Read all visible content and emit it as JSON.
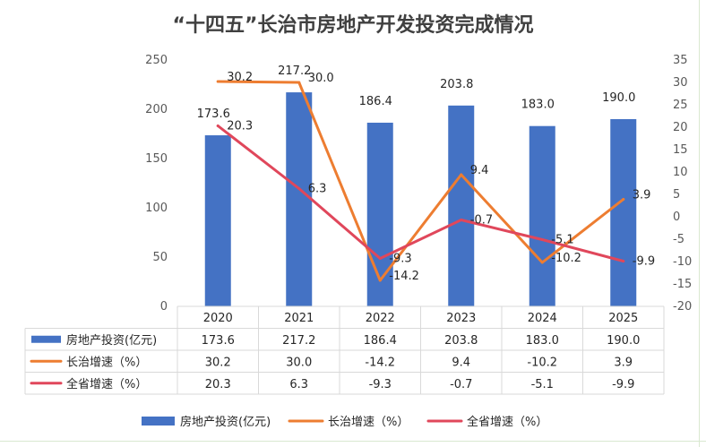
{
  "chart_data": {
    "type": "bar",
    "title": "“十四五”长治市房地产开发投资完成情况",
    "categories": [
      "2020",
      "2021",
      "2022",
      "2023",
      "2024",
      "2025"
    ],
    "series": [
      {
        "name": "房地产投资(亿元)",
        "kind": "bar",
        "axis": "left",
        "color": "#4472C4",
        "values": [
          173.6,
          217.2,
          186.4,
          203.8,
          183.0,
          190.0
        ],
        "labels": [
          "173.6",
          "217.2",
          "186.4",
          "203.8",
          "183.0",
          "190.0"
        ]
      },
      {
        "name": "长治增速（%）",
        "kind": "line",
        "axis": "right",
        "color": "#ED7D31",
        "values": [
          30.2,
          30.0,
          -14.2,
          9.4,
          -10.2,
          3.9
        ],
        "labels": [
          "30.2",
          "30.0",
          "-14.2",
          "9.4",
          "-10.2",
          "3.9"
        ]
      },
      {
        "name": "全省增速（%）",
        "kind": "line",
        "axis": "right",
        "color": "#E0475B",
        "values": [
          20.3,
          6.3,
          -9.3,
          -0.7,
          -5.1,
          -9.9
        ],
        "labels": [
          "20.3",
          "6.3",
          "-9.3",
          "-0.7",
          "-5.1",
          "-9.9"
        ]
      }
    ],
    "y_left": {
      "min": 0,
      "max": 250,
      "step": 50,
      "ticks": [
        "0",
        "50",
        "100",
        "150",
        "200",
        "250"
      ]
    },
    "y_right": {
      "min": -20,
      "max": 35,
      "step": 5,
      "ticks": [
        "-20",
        "-15",
        "-10",
        "-5",
        "0",
        "5",
        "10",
        "15",
        "20",
        "25",
        "30",
        "35"
      ]
    },
    "grid": false,
    "data_table": true,
    "legend": "bottom"
  }
}
